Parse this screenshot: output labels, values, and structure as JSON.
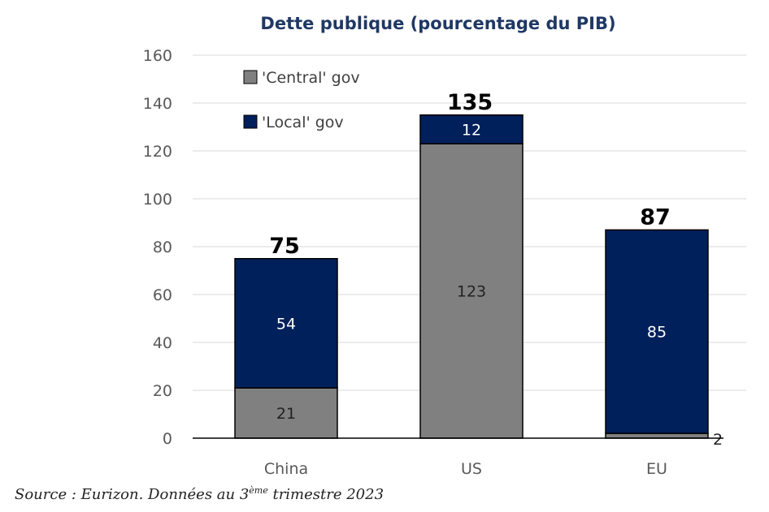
{
  "chart_data": {
    "type": "bar",
    "stacked": true,
    "title": "Dette publique (pourcentage du PIB)",
    "categories": [
      "China",
      "US",
      "EU"
    ],
    "series": [
      {
        "name": "'Central' gov",
        "values": [
          21,
          123,
          2
        ],
        "color": "#808080"
      },
      {
        "name": "'Local' gov",
        "values": [
          54,
          12,
          85
        ],
        "color": "#00205b"
      }
    ],
    "totals": [
      75,
      135,
      87
    ],
    "yticks": [
      0,
      20,
      40,
      60,
      80,
      100,
      120,
      140,
      160
    ],
    "ylim": [
      0,
      160
    ],
    "grid": true,
    "legend_position": "top-left",
    "colors": {
      "title": "#1f3864",
      "grid": "#d9d9d9",
      "label_on_dark": "#ffffff",
      "label_on_gray": "#222222"
    }
  },
  "source": {
    "prefix": "Source : Eurizon. Données au 3",
    "sup": "ème",
    "suffix": " trimestre 2023"
  }
}
